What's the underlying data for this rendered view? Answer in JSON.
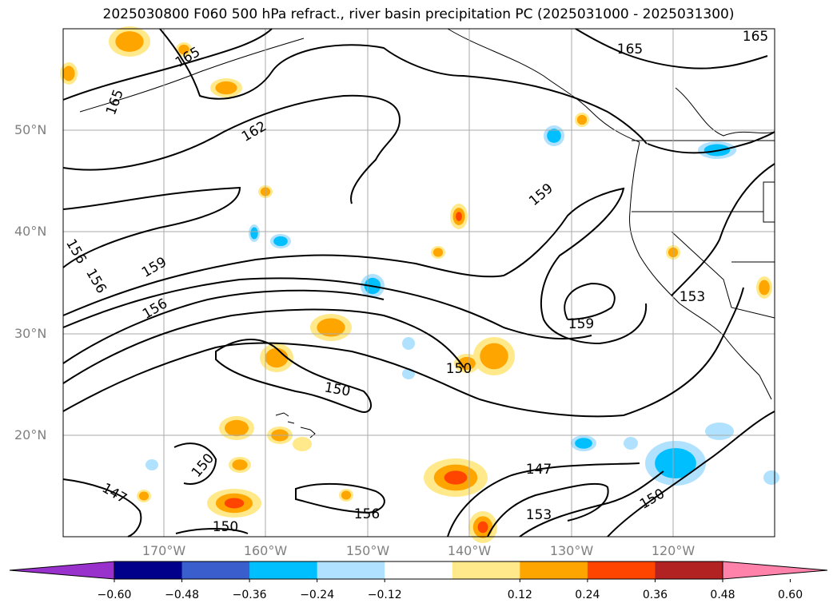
{
  "title": "2025030800 F060 500 hPa refract., river basin precipitation PC (2025031000 - 2025031300)",
  "map": {
    "projection": "equirectangular",
    "lon_range": [
      -180,
      -110
    ],
    "lat_range": [
      10,
      60
    ],
    "lat_ticks": [
      "20°N",
      "30°N",
      "40°N",
      "50°N"
    ],
    "lon_ticks": [
      "170°W",
      "160°W",
      "150°W",
      "140°W",
      "130°W",
      "120°W"
    ],
    "gridlines": true,
    "gridline_color": "#aaaaaa",
    "contour_color": "#000000",
    "contour_labels": [
      "165",
      "165",
      "165",
      "165",
      "162",
      "159",
      "159",
      "159",
      "156",
      "156",
      "156",
      "156",
      "153",
      "153",
      "150",
      "150",
      "150",
      "150",
      "150",
      "147",
      "147"
    ]
  },
  "colorbar": {
    "ticks": [
      "−0.60",
      "−0.48",
      "−0.36",
      "−0.24",
      "−0.12",
      "0.12",
      "0.24",
      "0.36",
      "0.48",
      "0.60"
    ],
    "colors": [
      "#9932cc",
      "#00008b",
      "#3a5fcd",
      "#00bfff",
      "#b0e2ff",
      "#ffffff",
      "#ffe98a",
      "#ffa500",
      "#ff4500",
      "#b22222",
      "#ff82ab"
    ]
  }
}
